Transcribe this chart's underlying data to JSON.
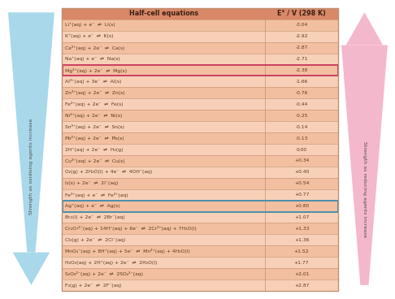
{
  "col1_header": "Half-cell equations",
  "col2_header": "E° / V (298 K)",
  "rows": [
    [
      "Li⁺(aq) + e⁻  ⇌  Li(s)",
      "-3.04"
    ],
    [
      "K⁺(aq) + e⁻  ⇌  K(s)",
      "-2.92"
    ],
    [
      "Ca²⁺(aq) + 2e⁻  ⇌  Ca(s)",
      "-2.87"
    ],
    [
      "Na⁺(aq) + e⁻  ⇌  Na(s)",
      "-2.71"
    ],
    [
      "Mg²⁺(aq) + 2e⁻  ⇌  Mg(s)",
      "-2.38"
    ],
    [
      "Al³⁺(aq) + 3e⁻  ⇌  Al(s)",
      "-1.66"
    ],
    [
      "Zn²⁺(aq) + 2e⁻  ⇌  Zn(s)",
      "-0.76"
    ],
    [
      "Fe²⁺(aq) + 2e⁻  ⇌  Fe(s)",
      "-0.44"
    ],
    [
      "Ni²⁺(aq) + 2e⁻  ⇌  Ni(s)",
      "-0.25"
    ],
    [
      "Sn²⁺(aq) + 2e⁻  ⇌  Sn(s)",
      "-0.14"
    ],
    [
      "Pb²⁺(aq) + 2e⁻  ⇌  Pb(s)",
      "-0.13"
    ],
    [
      "2H⁺(aq) + 2e⁻  ⇌  H₂(g)",
      "0.00"
    ],
    [
      "Cu²⁺(aq) + 2e⁻  ⇌  Cu(s)",
      "+0.34"
    ],
    [
      "O₂(g) + 2H₂O(l) + 4e⁻  ⇌  4OH⁻(aq)",
      "+0.40"
    ],
    [
      "I₂(s) + 2e⁻  ⇌  2I⁻(aq)",
      "+0.54"
    ],
    [
      "Fe³⁺(aq) + e⁻  ⇌  Fe²⁺(aq)",
      "+0.77"
    ],
    [
      "Ag⁺(aq) + e⁻  ⇌  Ag(s)",
      "+0.80"
    ],
    [
      "Br₂(l) + 2e⁻  ⇌  2Br⁻(aq)",
      "+1.07"
    ],
    [
      "Cr₂O₇²⁻(aq) + 14H⁺(aq) + 6e⁻  ⇌  2Cr³⁺(aq) + 7H₂O(l)",
      "+1.33"
    ],
    [
      "Cl₂(g) + 2e⁻  ⇌  2Cl⁻(aq)",
      "+1.36"
    ],
    [
      "MnO₄⁻(aq) + 8H⁺(aq) + 5e⁻  ⇌  Mn²⁺(aq) + 4H₂O(l)",
      "+1.52"
    ],
    [
      "H₂O₂(aq) + 2H⁺(aq) + 2e⁻  ⇌  2H₂O(l)",
      "+1.77"
    ],
    [
      "S₂O₈²⁻(aq) + 2e⁻  ⇌  2SO₄²⁻(aq)",
      "+2.01"
    ],
    [
      "F₂(g) + 2e⁻  ⇌  2F⁻(aq)",
      "+2.87"
    ]
  ],
  "highlighted_rows": [
    4,
    16
  ],
  "highlight_colors": [
    "#c94060",
    "#4a8faa"
  ],
  "table_bg": "#f2bfa0",
  "header_bg": "#d98868",
  "row_alt_bg": "#f8d0b8",
  "border_color": "#c09070",
  "arrow_left_color": "#a8d8ea",
  "arrow_right_color": "#f4b8cc",
  "left_label": "Strength as oxidising agents increase",
  "right_label": "Strength as reducing agents increase",
  "text_color": "#5a3a1a",
  "header_text_color": "#3a2010",
  "col_split": 0.735
}
